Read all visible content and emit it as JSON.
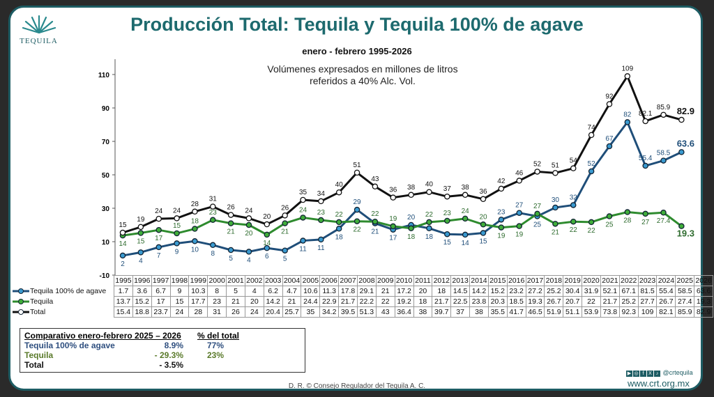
{
  "header": {
    "title": "Producción Total: Tequila y Tequila 100% de agave",
    "subtitle": "enero - febrero 1995-2026",
    "note_line1": "Volúmenes expresados en millones de litros",
    "note_line2": "referidos a 40% Alc. Vol.",
    "logo_text": "TEQUILA"
  },
  "chart_data": {
    "type": "line",
    "title": "Producción Total: Tequila y Tequila 100% de agave",
    "x": [
      "1995",
      "1996",
      "1997",
      "1998",
      "1999",
      "2000",
      "2001",
      "2002",
      "2003",
      "2004",
      "2005",
      "2006",
      "2007",
      "2008",
      "2009",
      "2010",
      "2011",
      "2012",
      "2013",
      "2014",
      "2015",
      "2016",
      "2017",
      "2018",
      "2019",
      "2020",
      "2021",
      "2022",
      "2023",
      "2024",
      "2025",
      "2026"
    ],
    "ylim": [
      -10,
      120
    ],
    "yticks": [
      "110",
      "90",
      "70",
      "50",
      "30",
      "10",
      "-10"
    ],
    "ytick_values": [
      110,
      90,
      70,
      50,
      30,
      10,
      -10
    ],
    "grid": false,
    "legend": "table-below",
    "series": [
      {
        "name": "Tequila 100% de agave",
        "color": "#1f4e79",
        "marker": "#3a9ad0",
        "values": [
          1.7,
          3.6,
          6.7,
          9,
          10.3,
          8,
          5,
          4,
          6.2,
          4.7,
          10.6,
          11.3,
          17.8,
          29.1,
          21,
          17.2,
          20,
          18,
          14.5,
          14.2,
          15.2,
          23.2,
          27.2,
          25.2,
          30.4,
          31.9,
          52.1,
          67.1,
          81.5,
          55.4,
          58.5,
          63.6
        ],
        "labels": [
          "2",
          "4",
          "7",
          "9",
          "10",
          "8",
          "5",
          "4",
          "6",
          "5",
          "11",
          "11",
          "18",
          "29",
          "21",
          "17",
          "20",
          "18",
          "15",
          "14",
          "15",
          "23",
          "27",
          "25",
          "30",
          "32",
          "52",
          "67",
          "82",
          "55.4",
          "58.5",
          "63.6"
        ]
      },
      {
        "name": "Tequila",
        "color": "#2e8b2e",
        "marker": "#3fae3a",
        "values": [
          13.7,
          15.2,
          17,
          15,
          17.7,
          23,
          21,
          20,
          14.2,
          21,
          24.4,
          22.9,
          21.7,
          22.2,
          22,
          19.2,
          18,
          21.7,
          22.5,
          23.8,
          20.3,
          18.5,
          19.3,
          26.7,
          20.7,
          22,
          21.7,
          25.2,
          27.7,
          26.7,
          27.4,
          19.3
        ],
        "labels": [
          "14",
          "15",
          "17",
          "15",
          "18",
          "23",
          "21",
          "20",
          "14",
          "21",
          "24",
          "23",
          "22",
          "22",
          "22",
          "19",
          "18",
          "22",
          "23",
          "24",
          "20",
          "19",
          "19",
          "27",
          "21",
          "22",
          "22",
          "25",
          "28",
          "27",
          "27.4",
          "19.3"
        ]
      },
      {
        "name": "Total",
        "color": "#111111",
        "marker": "#ffffff",
        "values": [
          15.4,
          18.8,
          23.7,
          24,
          28,
          31,
          26,
          24,
          20.4,
          25.7,
          35,
          34.2,
          39.5,
          51.3,
          43,
          36.4,
          38,
          39.7,
          37,
          38,
          35.5,
          41.7,
          46.5,
          51.9,
          51.1,
          53.9,
          73.8,
          92.3,
          109,
          82.1,
          85.9,
          82.9
        ],
        "labels": [
          "15",
          "19",
          "24",
          "24",
          "28",
          "31",
          "26",
          "24",
          "20",
          "26",
          "35",
          "34",
          "40",
          "51",
          "43",
          "36",
          "38",
          "40",
          "37",
          "38",
          "36",
          "42",
          "46",
          "52",
          "51",
          "54",
          "74",
          "92",
          "109",
          "82.1",
          "85.9",
          "82.9"
        ]
      }
    ]
  },
  "comparison": {
    "header": "Comparativo enero-febrero  2025 – 2026",
    "pct_header": "% del total",
    "rows": [
      {
        "label": "Tequila  100% de agave",
        "change": "8.9%",
        "share": "77%",
        "color": "#2f4f7f"
      },
      {
        "label": "Tequila",
        "change": "- 29.3%",
        "share": "23%",
        "color": "#5a7a2a"
      },
      {
        "label": "Total",
        "change": "- 3.5%",
        "share": "",
        "color": "#111111"
      }
    ]
  },
  "footer": {
    "copyright": "D. R. © Consejo Regulador del Tequila A. C.",
    "social_handle": "@crtequila",
    "url": "www.crt.org.mx"
  },
  "colors": {
    "frame": "#1d5c63",
    "title": "#1d6a6e"
  }
}
